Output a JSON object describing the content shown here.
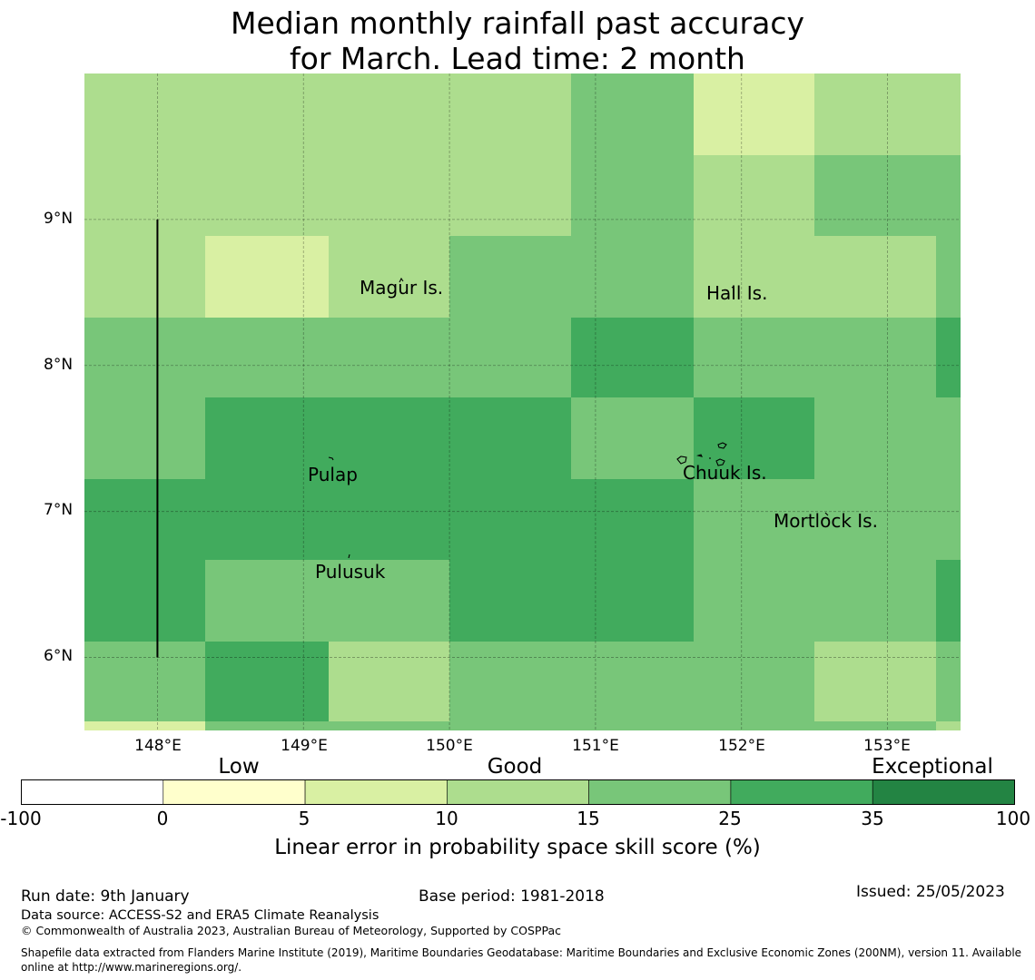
{
  "title": {
    "line1": "Median monthly rainfall past accuracy",
    "line2": "for March. Lead time: 2 month"
  },
  "map": {
    "lon_range": [
      147.5,
      153.5
    ],
    "lat_range": [
      5.5,
      10.0
    ],
    "x_ticks": [
      "148°E",
      "149°E",
      "150°E",
      "151°E",
      "152°E",
      "153°E"
    ],
    "y_ticks": [
      "9°N",
      "8°N",
      "7°N",
      "6°N"
    ],
    "grid_lon_edges": [
      147.5,
      148.33,
      149.17,
      150.0,
      150.83,
      151.67,
      152.5,
      153.33,
      153.5
    ],
    "grid_lat_edges": [
      10.0,
      9.44,
      8.89,
      8.33,
      7.78,
      7.22,
      6.67,
      6.11,
      5.56,
      5.5
    ],
    "skill_grid": [
      [
        3,
        3,
        3,
        3,
        4,
        2,
        3,
        3
      ],
      [
        3,
        3,
        3,
        3,
        4,
        3,
        4,
        4
      ],
      [
        3,
        2,
        3,
        4,
        4,
        3,
        3,
        4
      ],
      [
        4,
        4,
        4,
        4,
        5,
        4,
        4,
        5
      ],
      [
        4,
        5,
        5,
        5,
        4,
        5,
        4,
        4
      ],
      [
        5,
        5,
        5,
        5,
        5,
        4,
        4,
        4
      ],
      [
        5,
        4,
        4,
        5,
        5,
        4,
        4,
        5
      ],
      [
        4,
        5,
        3,
        4,
        4,
        4,
        3,
        4
      ],
      [
        2,
        4,
        4,
        4,
        4,
        4,
        4,
        3
      ]
    ],
    "boundary_line": {
      "lon": 148.0,
      "lat_from": 6.0,
      "lat_to": 9.0
    },
    "places": [
      {
        "name": "Magur Is.",
        "lon": 149.55,
        "lat": 8.58
      },
      {
        "name": "Hall Is.",
        "lon": 151.98,
        "lat": 8.52
      },
      {
        "name": "Pulap",
        "lon": 149.2,
        "lat": 7.35
      },
      {
        "name": "Chuuk Is.",
        "lon": 151.85,
        "lat": 7.4
      },
      {
        "name": "Mortlock Is.",
        "lon": 152.6,
        "lat": 6.95
      },
      {
        "name": "Pulusuk",
        "lon": 149.3,
        "lat": 6.68
      }
    ]
  },
  "legend": {
    "categories": [
      "Low",
      "Good",
      "Exceptional"
    ],
    "ticks": [
      "-100",
      "0",
      "5",
      "10",
      "15",
      "25",
      "35",
      "100"
    ],
    "colors": [
      "#ffffff",
      "#ffffcc",
      "#d9f0a3",
      "#addd8e",
      "#78c679",
      "#41ab5d",
      "#238443"
    ],
    "label": "Linear error in probability space skill score (%)"
  },
  "footer": {
    "run_date": "Run date: 9th January",
    "base_period": "Base period: 1981-2018",
    "issued": "Issued: 25/05/2023",
    "data_source": "Data source: ACCESS-S2 and ERA5 Climate Reanalysis",
    "copyright": "© Commonwealth of Australia 2023, Australian Bureau of Meteorology, Supported by COSPPac",
    "shapefile": "Shapefile data extracted from Flanders Marine Institute (2019), Maritime Boundaries Geodatabase: Maritime Boundaries and Exclusive Economic Zones (200NM), version 11. Available online at http://www.marineregions.org/."
  }
}
